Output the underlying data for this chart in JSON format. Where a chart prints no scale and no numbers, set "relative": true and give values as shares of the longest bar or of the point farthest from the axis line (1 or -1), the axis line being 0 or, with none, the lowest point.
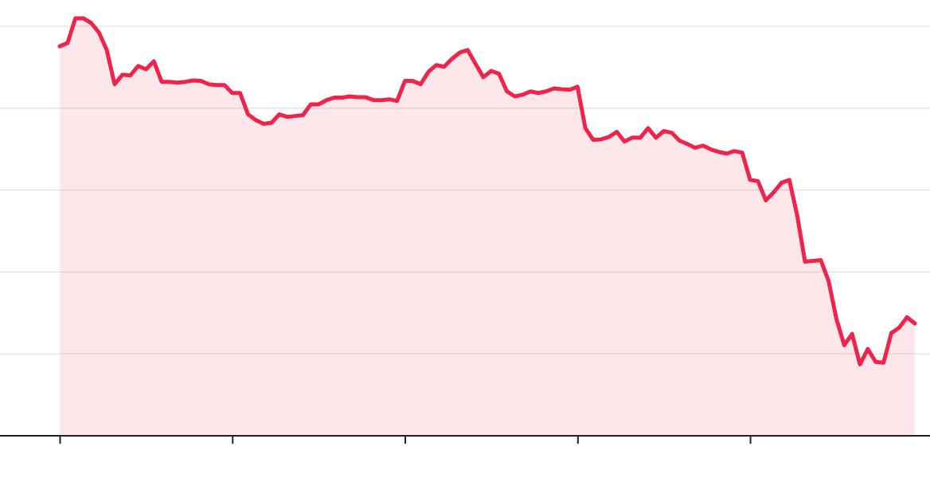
{
  "chart_data": {
    "type": "area",
    "relative": true,
    "grid": "y",
    "categories": [
      null,
      null,
      null,
      null,
      null,
      null,
      null,
      null,
      null,
      null,
      null,
      null,
      null,
      null,
      null,
      null,
      null,
      null,
      null,
      null,
      null,
      null,
      null,
      null,
      null,
      null,
      null,
      null,
      null,
      null,
      null,
      null,
      null,
      null,
      null,
      null,
      null,
      null,
      null,
      null,
      null,
      null,
      null,
      null,
      null,
      null,
      null,
      null,
      null,
      null,
      null,
      null,
      null,
      null,
      null,
      null,
      null,
      null,
      null,
      null,
      null,
      null,
      null,
      null,
      null,
      null,
      null,
      null,
      null,
      null,
      null,
      null,
      null,
      null,
      null,
      null,
      null,
      null,
      null,
      null,
      null,
      null,
      null,
      null,
      null,
      null,
      null,
      null,
      null,
      null,
      null,
      null,
      null,
      null,
      null,
      null,
      null,
      null,
      null,
      null,
      null,
      null,
      null,
      null,
      null,
      null,
      null,
      null,
      null,
      null
    ],
    "series": [
      {
        "color": "#f0234b",
        "values": [
          0.933,
          0.941,
          1,
          1,
          0.989,
          0.966,
          0.924,
          0.842,
          0.865,
          0.863,
          0.886,
          0.878,
          0.897,
          0.848,
          0.848,
          0.846,
          0.848,
          0.851,
          0.85,
          0.842,
          0.84,
          0.84,
          0.821,
          0.821,
          0.77,
          0.756,
          0.747,
          0.75,
          0.77,
          0.764,
          0.766,
          0.768,
          0.794,
          0.794,
          0.804,
          0.81,
          0.81,
          0.813,
          0.811,
          0.811,
          0.804,
          0.804,
          0.806,
          0.802,
          0.85,
          0.85,
          0.842,
          0.872,
          0.888,
          0.884,
          0.903,
          0.918,
          0.924,
          0.891,
          0.859,
          0.874,
          0.867,
          0.825,
          0.813,
          0.817,
          0.825,
          0.821,
          0.825,
          0.832,
          0.83,
          0.829,
          0.836,
          0.737,
          0.709,
          0.71,
          0.716,
          0.728,
          0.705,
          0.714,
          0.714,
          0.737,
          0.714,
          0.73,
          0.726,
          0.707,
          0.699,
          0.69,
          0.695,
          0.686,
          0.68,
          0.676,
          0.682,
          0.678,
          0.613,
          0.61,
          0.564,
          0.583,
          0.606,
          0.613,
          0.528,
          0.417,
          0.419,
          0.421,
          0.371,
          0.28,
          0.217,
          0.244,
          0.171,
          0.208,
          0.177,
          0.175,
          0.246,
          0.259,
          0.284,
          0.269
        ]
      }
    ]
  }
}
